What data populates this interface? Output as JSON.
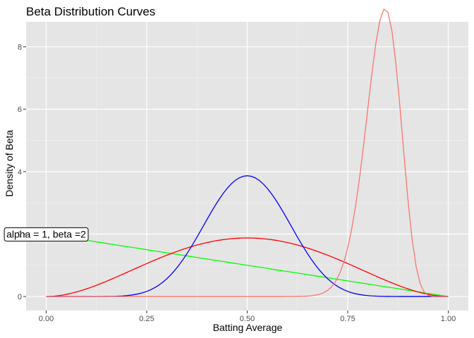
{
  "chart_data": {
    "type": "line",
    "title": "Beta Distribution Curves",
    "xlabel": "Batting Average",
    "ylabel": "Density of Beta",
    "xlim": [
      -0.05,
      1.05
    ],
    "ylim": [
      -0.45,
      8.8
    ],
    "x_ticks": [
      0,
      0.25,
      0.5,
      0.75,
      1
    ],
    "x_tick_labels": [
      "0.00",
      "0.25",
      "0.50",
      "0.75",
      "1.00"
    ],
    "y_ticks": [
      0,
      2,
      4,
      6,
      8
    ],
    "y_tick_labels": [
      "0",
      "2",
      "4",
      "6",
      "8"
    ],
    "grid": true,
    "legend": "none",
    "series": [
      {
        "alpha": 1,
        "beta": 2,
        "color": "#00ff00"
      },
      {
        "alpha": 3,
        "beta": 3,
        "color": "#ff0000"
      },
      {
        "alpha": 12,
        "beta": 12,
        "color": "#0000ff"
      },
      {
        "alpha": 60,
        "beta": 12,
        "color": "#f8766d"
      }
    ],
    "annotations": [
      {
        "text": "alpha = 1, beta =2",
        "x": 0,
        "y": 2
      }
    ]
  }
}
